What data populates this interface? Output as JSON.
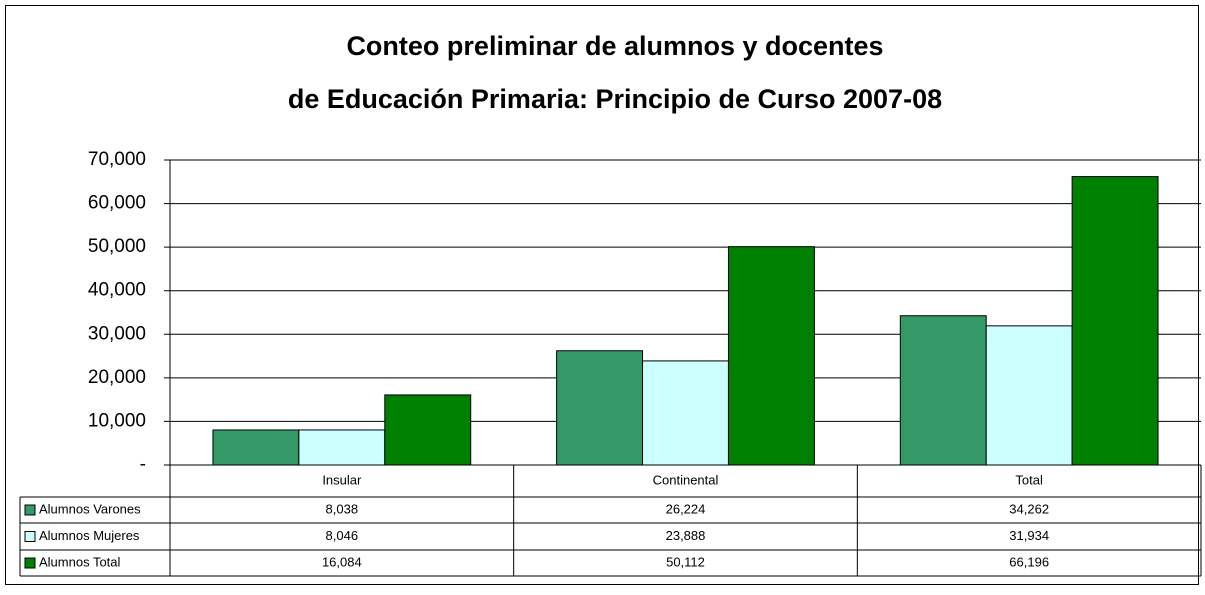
{
  "chart_data": {
    "type": "bar",
    "title": [
      "Conteo preliminar de alumnos y docentes",
      "de Educación Primaria: Principio de Curso 2007-08"
    ],
    "categories": [
      "Insular",
      "Continental",
      "Total"
    ],
    "series": [
      {
        "name": "Alumnos Varones",
        "color": "#339966",
        "values": [
          8038,
          26224,
          34262
        ],
        "value_labels": [
          "8,038",
          "26,224",
          "34,262"
        ]
      },
      {
        "name": "Alumnos Mujeres",
        "color": "#ccffff",
        "values": [
          8046,
          23888,
          31934
        ],
        "value_labels": [
          "8,046",
          "23,888",
          "31,934"
        ]
      },
      {
        "name": "Alumnos Total",
        "color": "#008000",
        "values": [
          16084,
          50112,
          66196
        ],
        "value_labels": [
          "16,084",
          "50,112",
          "66,196"
        ]
      }
    ],
    "ylim": [
      0,
      70000
    ],
    "yticks": [
      {
        "value": 0,
        "label": "-"
      },
      {
        "value": 10000,
        "label": "10,000"
      },
      {
        "value": 20000,
        "label": "20,000"
      },
      {
        "value": 30000,
        "label": "30,000"
      },
      {
        "value": 40000,
        "label": "40,000"
      },
      {
        "value": 50000,
        "label": "50,000"
      },
      {
        "value": 60000,
        "label": "60,000"
      },
      {
        "value": 70000,
        "label": "70,000"
      }
    ],
    "grid": true,
    "legend": "table"
  }
}
